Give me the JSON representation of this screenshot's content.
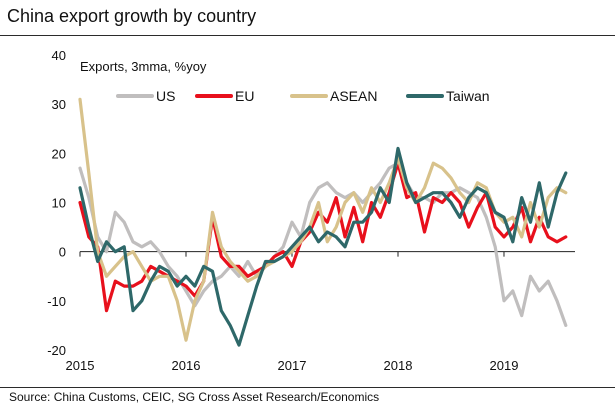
{
  "header": {
    "title": "China export growth by country"
  },
  "footer": {
    "source": "Source: China Customs, CEIC, SG Cross Asset Research/Economics"
  },
  "chart_data": {
    "type": "line",
    "title": "China export growth by country",
    "subtitle": "Exports, 3mma, %yoy",
    "xlabel": "",
    "ylabel": "",
    "ylim": [
      -20,
      40
    ],
    "yticks": [
      -20,
      -10,
      0,
      10,
      20,
      30,
      40
    ],
    "xlim": [
      2015.0,
      2019.67
    ],
    "xticks": [
      2015,
      2016,
      2017,
      2018,
      2019
    ],
    "xtick_labels": [
      "2015",
      "2016",
      "2017",
      "2018",
      "2019"
    ],
    "grid": false,
    "legend_position": "top",
    "x": [
      2015.0,
      2015.083,
      2015.167,
      2015.25,
      2015.333,
      2015.417,
      2015.5,
      2015.583,
      2015.667,
      2015.75,
      2015.833,
      2015.917,
      2016.0,
      2016.083,
      2016.167,
      2016.25,
      2016.333,
      2016.417,
      2016.5,
      2016.583,
      2016.667,
      2016.75,
      2016.833,
      2016.917,
      2017.0,
      2017.083,
      2017.167,
      2017.25,
      2017.333,
      2017.417,
      2017.5,
      2017.583,
      2017.667,
      2017.75,
      2017.833,
      2017.917,
      2018.0,
      2018.083,
      2018.167,
      2018.25,
      2018.333,
      2018.417,
      2018.5,
      2018.583,
      2018.667,
      2018.75,
      2018.833,
      2018.917,
      2019.0,
      2019.083,
      2019.167,
      2019.25,
      2019.333,
      2019.417,
      2019.5,
      2019.583
    ],
    "series": [
      {
        "name": "US",
        "color": "#c0bebe",
        "values": [
          17,
          11,
          3,
          0,
          8,
          6,
          2,
          1,
          2,
          0,
          -3,
          -5,
          -8,
          -11,
          -8,
          -6,
          -5,
          -3,
          -5,
          -2,
          -5,
          -3,
          -1,
          1,
          6,
          3,
          10,
          13,
          14,
          12,
          11,
          12,
          10,
          12,
          14,
          17,
          18,
          14,
          11,
          11,
          10,
          12,
          12,
          13,
          12,
          11,
          7,
          1,
          -10,
          -8,
          -13,
          -5,
          -8,
          -6,
          -10,
          -15
        ]
      },
      {
        "name": "EU",
        "color": "#e8101c",
        "values": [
          10,
          3,
          1,
          -12,
          -6,
          -7,
          -7,
          -6,
          -3,
          -4,
          -5,
          -6,
          -7,
          -9,
          -6,
          7,
          -1,
          -3,
          -3,
          -5,
          -4,
          -3,
          -1,
          0,
          -3,
          2,
          4,
          8,
          6,
          11,
          3,
          9,
          2,
          10,
          7,
          12,
          18,
          11,
          12,
          4,
          11,
          10,
          12,
          10,
          5,
          9,
          12,
          5,
          3,
          5,
          9,
          2,
          7,
          3,
          2,
          3
        ]
      },
      {
        "name": "ASEAN",
        "color": "#d8c28b",
        "values": [
          31,
          16,
          0,
          -5,
          -3,
          -1,
          0,
          -3,
          -6,
          -5,
          -5,
          -10,
          -18,
          -10,
          -6,
          8,
          1,
          -2,
          -4,
          -6,
          -5,
          -3,
          -2,
          -1,
          0,
          2,
          5,
          10,
          2,
          5,
          10,
          12,
          8,
          13,
          10,
          14,
          19,
          13,
          10,
          13,
          18,
          17,
          15,
          12,
          10,
          14,
          13,
          8,
          6,
          7,
          3,
          10,
          5,
          11,
          13,
          12
        ]
      },
      {
        "name": "Taiwan",
        "color": "#2e6869",
        "values": [
          13,
          5,
          -2,
          2,
          0,
          1,
          -12,
          -10,
          -6,
          -3,
          -4,
          -7,
          -5,
          -7,
          -3,
          -4,
          -12,
          -15,
          -19,
          -13,
          -7,
          -2,
          -2,
          -1,
          1,
          3,
          5,
          2,
          4,
          3,
          1,
          6,
          6,
          8,
          13,
          10,
          21,
          14,
          10,
          11,
          12,
          12,
          10,
          7,
          11,
          13,
          12,
          8,
          7,
          2,
          11,
          6,
          14,
          5,
          12,
          16
        ]
      }
    ]
  }
}
